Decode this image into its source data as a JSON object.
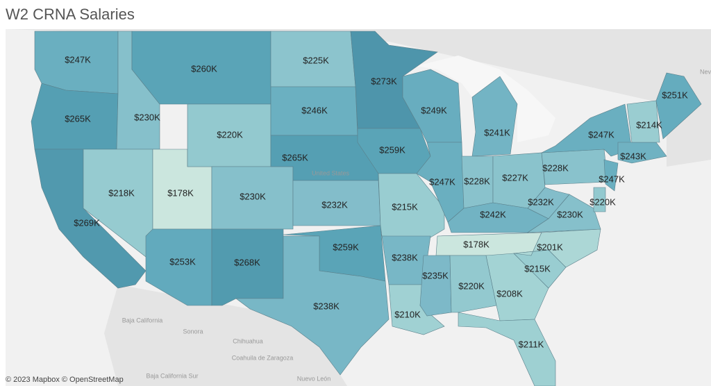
{
  "title": "W2 CRNA Salaries",
  "regions": [
    {
      "label": "$247K",
      "color": "#6aafc0"
    },
    {
      "label": "$265K",
      "color": "#559fb3"
    },
    {
      "label": "$269K",
      "color": "#5199ae"
    },
    {
      "label": "$230K",
      "color": "#86c0cb"
    },
    {
      "label": "$218K",
      "color": "#96cbd0"
    },
    {
      "label": "$178K",
      "color": "#cbe6de"
    },
    {
      "label": "$253K",
      "color": "#62aabd"
    },
    {
      "label": "$260K",
      "color": "#5aa4b7"
    },
    {
      "label": "$220K",
      "color": "#93c9cf"
    },
    {
      "label": "$230K",
      "color": "#86c0cb"
    },
    {
      "label": "$268K",
      "color": "#529baf"
    },
    {
      "label": "$225K",
      "color": "#8cc4cd"
    },
    {
      "label": "$246K",
      "color": "#6bb0c1"
    },
    {
      "label": "$265K",
      "color": "#559fb3"
    },
    {
      "label": "$232K",
      "color": "#83bdca"
    },
    {
      "label": "$259K",
      "color": "#5aa4b7"
    },
    {
      "label": "$238K",
      "color": "#78b7c6"
    },
    {
      "label": "$273K",
      "color": "#4e95ab"
    },
    {
      "label": "$259K",
      "color": "#5aa4b7"
    },
    {
      "label": "$215K",
      "color": "#99cdd1"
    },
    {
      "label": "$238K",
      "color": "#78b7c6"
    },
    {
      "label": "$210K",
      "color": "#a0d1d3"
    },
    {
      "label": "$249K",
      "color": "#68adbf"
    },
    {
      "label": "$247K",
      "color": "#6aafc0"
    },
    {
      "label": "$241K",
      "color": "#73b4c4"
    },
    {
      "label": "$228K",
      "color": "#89c2cc"
    },
    {
      "label": "$227K",
      "color": "#8ac3cc"
    },
    {
      "label": "$242K",
      "color": "#72b3c3"
    },
    {
      "label": "$178K",
      "color": "#cbe6de"
    },
    {
      "label": "$235K",
      "color": "#7db9c8"
    },
    {
      "label": "$220K",
      "color": "#93c9cf"
    },
    {
      "label": "$208K",
      "color": "#a3d3d4"
    },
    {
      "label": "$211K",
      "color": "#9ed0d2"
    },
    {
      "label": "$215K",
      "color": "#99cdd1"
    },
    {
      "label": "$201K",
      "color": "#acd7d6"
    },
    {
      "label": "$230K",
      "color": "#86c0cb"
    },
    {
      "label": "$232K",
      "color": "#83bdca"
    },
    {
      "label": "$228K",
      "color": "#89c2cc"
    },
    {
      "label": "$247K",
      "color": "#6aafc0"
    },
    {
      "label": "$247K",
      "color": "#6aafc0"
    },
    {
      "label": "$220K",
      "color": "#93c9cf"
    },
    {
      "label": "$243K",
      "color": "#70b2c2"
    },
    {
      "label": "$214K",
      "color": "#9acdd1"
    },
    {
      "label": "$251K",
      "color": "#65acbe"
    }
  ],
  "basemap_labels": [
    "United States",
    "Baja California",
    "Sonora",
    "Chihuahua",
    "Coahuila de Zaragoza",
    "Nuevo León",
    "Baja California Sur",
    "Nev"
  ],
  "attribution": "© 2023 Mapbox © OpenStreetMap"
}
